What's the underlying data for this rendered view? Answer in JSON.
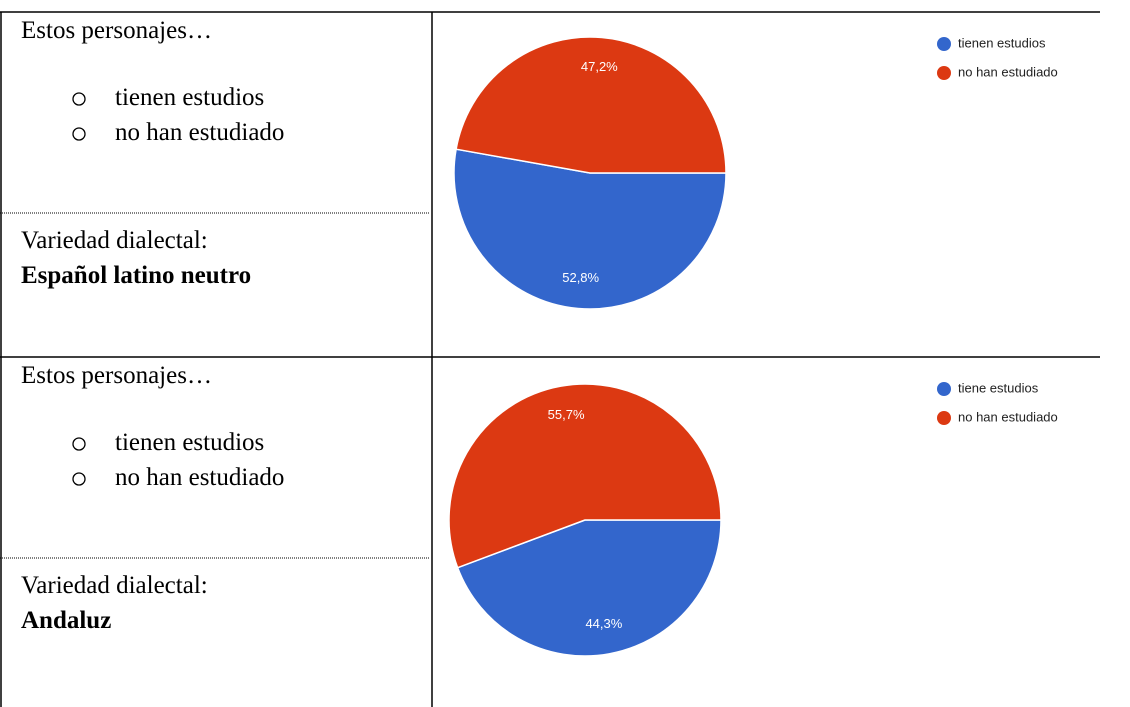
{
  "rows": [
    {
      "heading": "Estos personajes…",
      "options": [
        "tienen estudios",
        "no han estudiado"
      ],
      "variety_label": "Variedad dialectal:",
      "variety": "Español latino neutro"
    },
    {
      "heading": "Estos personajes…",
      "options": [
        "tienen estudios",
        "no han estudiado"
      ],
      "variety_label": "Variedad dialectal:",
      "variety": "Andaluz"
    }
  ],
  "chart_data": [
    {
      "type": "pie",
      "categories": [
        "tienen estudios",
        "no han estudiado"
      ],
      "values": [
        52.8,
        47.2
      ],
      "value_labels": [
        "52,8%",
        "47,2%"
      ],
      "colors": [
        "#3366cc",
        "#dc3912"
      ],
      "legend": "top-right"
    },
    {
      "type": "pie",
      "categories": [
        "tiene estudios",
        "no han estudiado"
      ],
      "values": [
        44.3,
        55.7
      ],
      "value_labels": [
        "44,3%",
        "55,7%"
      ],
      "colors": [
        "#3366cc",
        "#dc3912"
      ],
      "legend": "top-right"
    }
  ]
}
